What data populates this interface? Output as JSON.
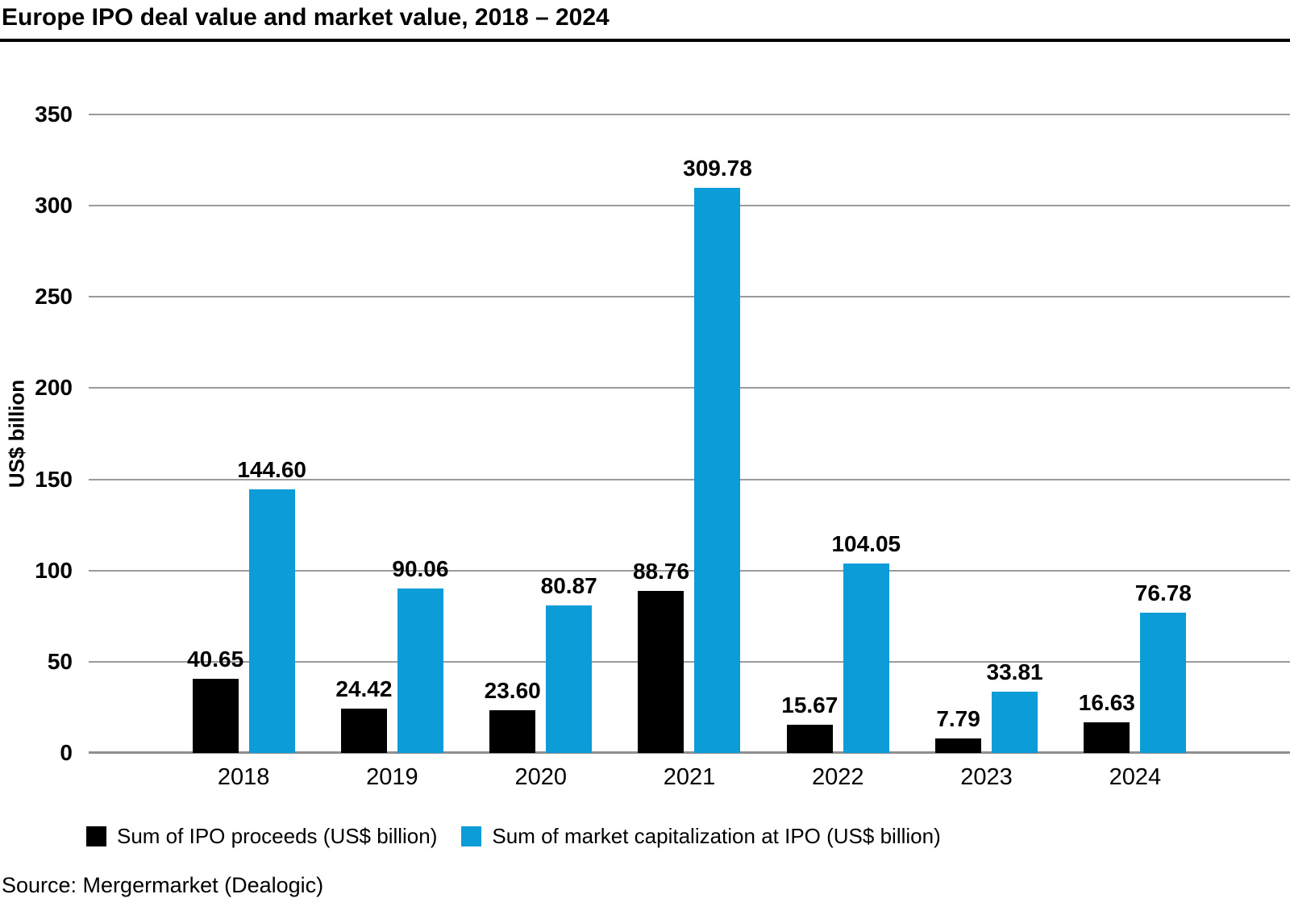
{
  "title": "Europe IPO deal value and market value, 2018 – 2024",
  "source": "Source: Mergermarket (Dealogic)",
  "colors": {
    "proceeds_series": "#000000",
    "market_cap_series": "#0c9cd8",
    "gridline": "#9b9b9b",
    "axis_line": "#8f8f8f",
    "title_rule": "#000000"
  },
  "chart_data": {
    "type": "bar",
    "title": "Europe IPO deal value and market value, 2018 – 2024",
    "categories": [
      "2018",
      "2019",
      "2020",
      "2021",
      "2022",
      "2023",
      "2024"
    ],
    "series": [
      {
        "name": "Sum of IPO proceeds (US$ billion)",
        "color": "#000000",
        "values": [
          40.65,
          24.42,
          23.6,
          88.76,
          15.67,
          7.79,
          16.63
        ]
      },
      {
        "name": "Sum of market capitalization at IPO (US$ billion)",
        "color": "#0c9cd8",
        "values": [
          144.6,
          90.06,
          80.87,
          309.78,
          104.05,
          33.81,
          76.78
        ]
      }
    ],
    "xlabel": "",
    "ylabel": "US$ billion",
    "ylim": [
      0,
      350
    ],
    "ytick_step": 50,
    "yticks": [
      0,
      50,
      100,
      150,
      200,
      250,
      300,
      350
    ],
    "grid": true,
    "value_labels_decimals": 2,
    "legend_position": "bottom"
  }
}
